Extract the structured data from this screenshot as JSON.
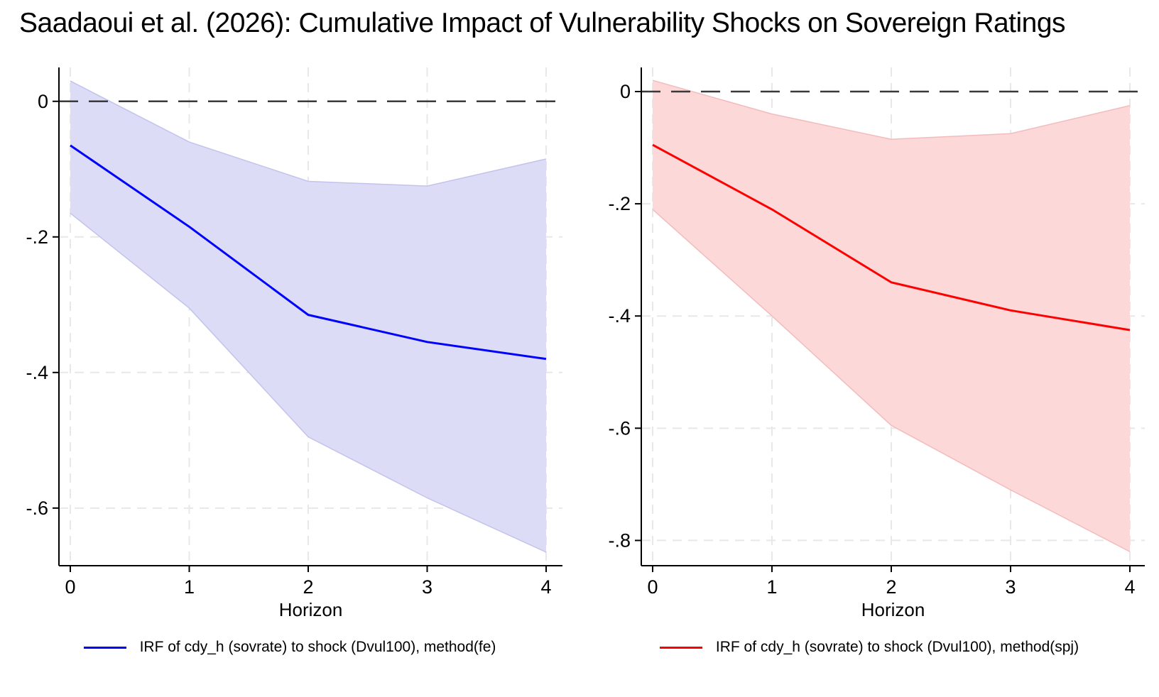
{
  "title": "Saadaoui et al. (2026): Cumulative Impact of Vulnerability Shocks on Sovereign Ratings",
  "colors": {
    "zero_line": "#3a3a3a",
    "grid": "#e8e8e8",
    "axis": "#000000",
    "background": "#ffffff",
    "blue_line": "#0000ff",
    "blue_band": "#dcdcf6",
    "red_line": "#ff0000",
    "red_band": "#fcd8d8"
  },
  "chart_data": [
    {
      "type": "line",
      "panel": "left",
      "title": "",
      "x": [
        0,
        1,
        2,
        3,
        4
      ],
      "xlabel": "Horizon",
      "xtick_labels": [
        "0",
        "1",
        "2",
        "3",
        "4"
      ],
      "ytick_values": [
        0,
        -0.2,
        -0.4,
        -0.6
      ],
      "ytick_labels": [
        "0",
        "-.2",
        "-.4",
        "-.6"
      ],
      "ylim": [
        -0.685,
        0.05
      ],
      "zero_line": 0,
      "grid": true,
      "legend_position": "bottom",
      "legend": "IRF of cdy_h (sovrate) to shock (Dvul100), method(fe)",
      "line_color": "#0000ff",
      "band_fill": "#dcdcf6",
      "band_edge": "#c3c3ec",
      "series": [
        {
          "name": "IRF point estimate, method(fe)",
          "values": [
            -0.065,
            -0.185,
            -0.315,
            -0.355,
            -0.38
          ]
        },
        {
          "name": "95% CI upper bound",
          "values": [
            0.03,
            -0.06,
            -0.118,
            -0.125,
            -0.085
          ]
        },
        {
          "name": "95% CI lower bound",
          "values": [
            -0.165,
            -0.305,
            -0.495,
            -0.585,
            -0.665
          ]
        }
      ]
    },
    {
      "type": "line",
      "panel": "right",
      "title": "",
      "x": [
        0,
        1,
        2,
        3,
        4
      ],
      "xlabel": "Horizon",
      "xtick_labels": [
        "0",
        "1",
        "2",
        "3",
        "4"
      ],
      "ytick_values": [
        0,
        -0.2,
        -0.4,
        -0.6,
        -0.8
      ],
      "ytick_labels": [
        "0",
        "-.2",
        "-.4",
        "-.6",
        "-.8"
      ],
      "ylim": [
        -0.845,
        0.043
      ],
      "zero_line": 0,
      "grid": true,
      "legend_position": "bottom",
      "legend": "IRF of cdy_h (sovrate) to shock (Dvul100), method(spj)",
      "line_color": "#ff0000",
      "band_fill": "#fcd8d8",
      "band_edge": "#f3bcbc",
      "series": [
        {
          "name": "IRF point estimate, method(spj)",
          "values": [
            -0.095,
            -0.21,
            -0.34,
            -0.39,
            -0.425
          ]
        },
        {
          "name": "95% CI upper bound",
          "values": [
            0.02,
            -0.04,
            -0.085,
            -0.075,
            -0.025
          ]
        },
        {
          "name": "95% CI lower bound",
          "values": [
            -0.21,
            -0.4,
            -0.595,
            -0.71,
            -0.82
          ]
        }
      ]
    }
  ]
}
